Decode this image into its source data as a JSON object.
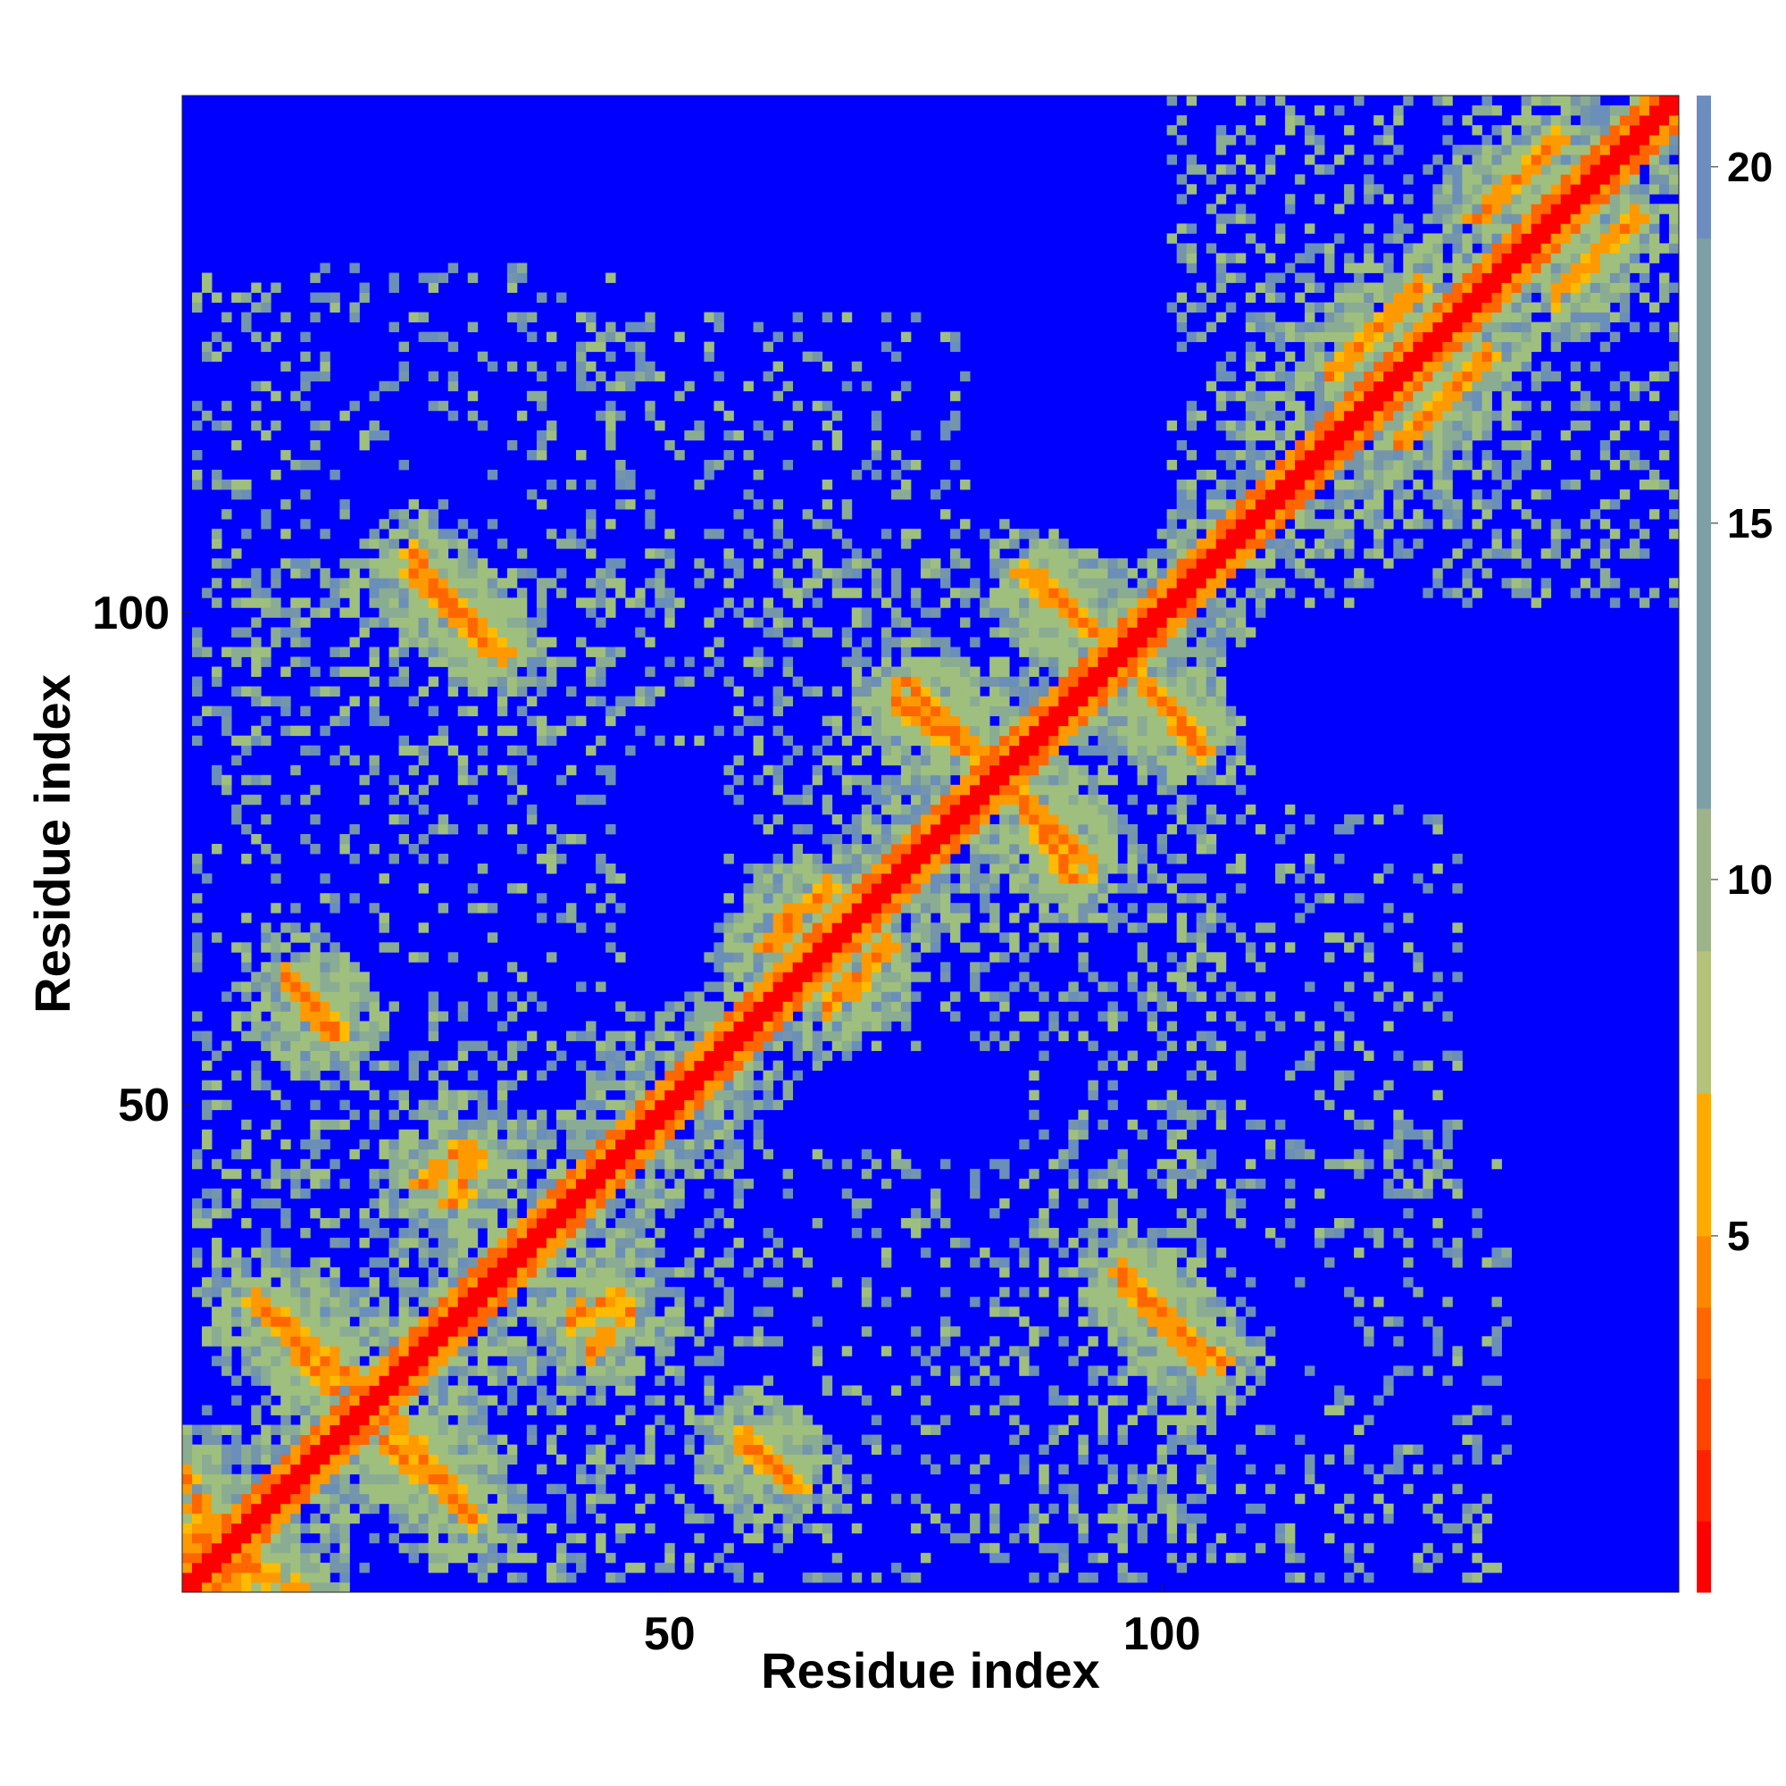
{
  "chart_data": {
    "type": "heatmap",
    "title": "",
    "xlabel": "Residue index",
    "ylabel": "Residue index",
    "n_residues": 152,
    "xlim": [
      1,
      152
    ],
    "ylim": [
      1,
      152
    ],
    "x_ticks": [
      50,
      100
    ],
    "y_ticks": [
      50,
      100
    ],
    "colorbar": {
      "ticks": [
        5,
        10,
        15,
        20
      ],
      "range": [
        0,
        21
      ],
      "colors": [
        "#ff0000",
        "#ff3300",
        "#ff6600",
        "#ff9900",
        "#ffbb00",
        "#9fbf7e",
        "#8aac93",
        "#7595aa",
        "#6a8fb9",
        "#0000ff"
      ]
    },
    "diagonal_band": {
      "core_width": 2,
      "orange_width": 4,
      "halo_width": 12
    },
    "contact_segments": [
      {
        "kind": "antiparallel",
        "start": [
          1,
          6
        ],
        "end": [
          12,
          1
        ]
      },
      {
        "kind": "antiparallel",
        "start": [
          8,
          30
        ],
        "end": [
          18,
          22
        ]
      },
      {
        "kind": "antiparallel",
        "start": [
          20,
          17
        ],
        "end": [
          30,
          8
        ]
      },
      {
        "kind": "antiparallel",
        "start": [
          24,
          104
        ],
        "end": [
          33,
          96
        ]
      },
      {
        "kind": "parallel",
        "start": [
          12,
          62
        ],
        "end": [
          16,
          58
        ]
      },
      {
        "kind": "cluster",
        "start": [
          25,
          42
        ],
        "end": [
          29,
          46
        ]
      },
      {
        "kind": "cluster",
        "start": [
          40,
          28
        ],
        "end": [
          45,
          31
        ]
      },
      {
        "kind": "antiparallel",
        "start": [
          57,
          16
        ],
        "end": [
          63,
          11
        ]
      },
      {
        "kind": "antiparallel",
        "start": [
          73,
          91
        ],
        "end": [
          82,
          85
        ]
      },
      {
        "kind": "antiparallel",
        "start": [
          87,
          80
        ],
        "end": [
          93,
          74
        ]
      },
      {
        "kind": "antiparallel",
        "start": [
          86,
          104
        ],
        "end": [
          92,
          99
        ]
      },
      {
        "kind": "antiparallel",
        "start": [
          97,
          94
        ],
        "end": [
          103,
          88
        ]
      },
      {
        "kind": "antiparallel",
        "start": [
          96,
          32
        ],
        "end": [
          106,
          24
        ]
      },
      {
        "kind": "parallel",
        "start": [
          117,
          124
        ],
        "end": [
          126,
          133
        ]
      },
      {
        "kind": "parallel",
        "start": [
          132,
          140
        ],
        "end": [
          140,
          148
        ]
      },
      {
        "kind": "cluster",
        "start": [
          62,
          68
        ],
        "end": [
          66,
          72
        ]
      },
      {
        "kind": "cluster",
        "start": [
          66,
          60
        ],
        "end": [
          70,
          63
        ]
      }
    ]
  }
}
